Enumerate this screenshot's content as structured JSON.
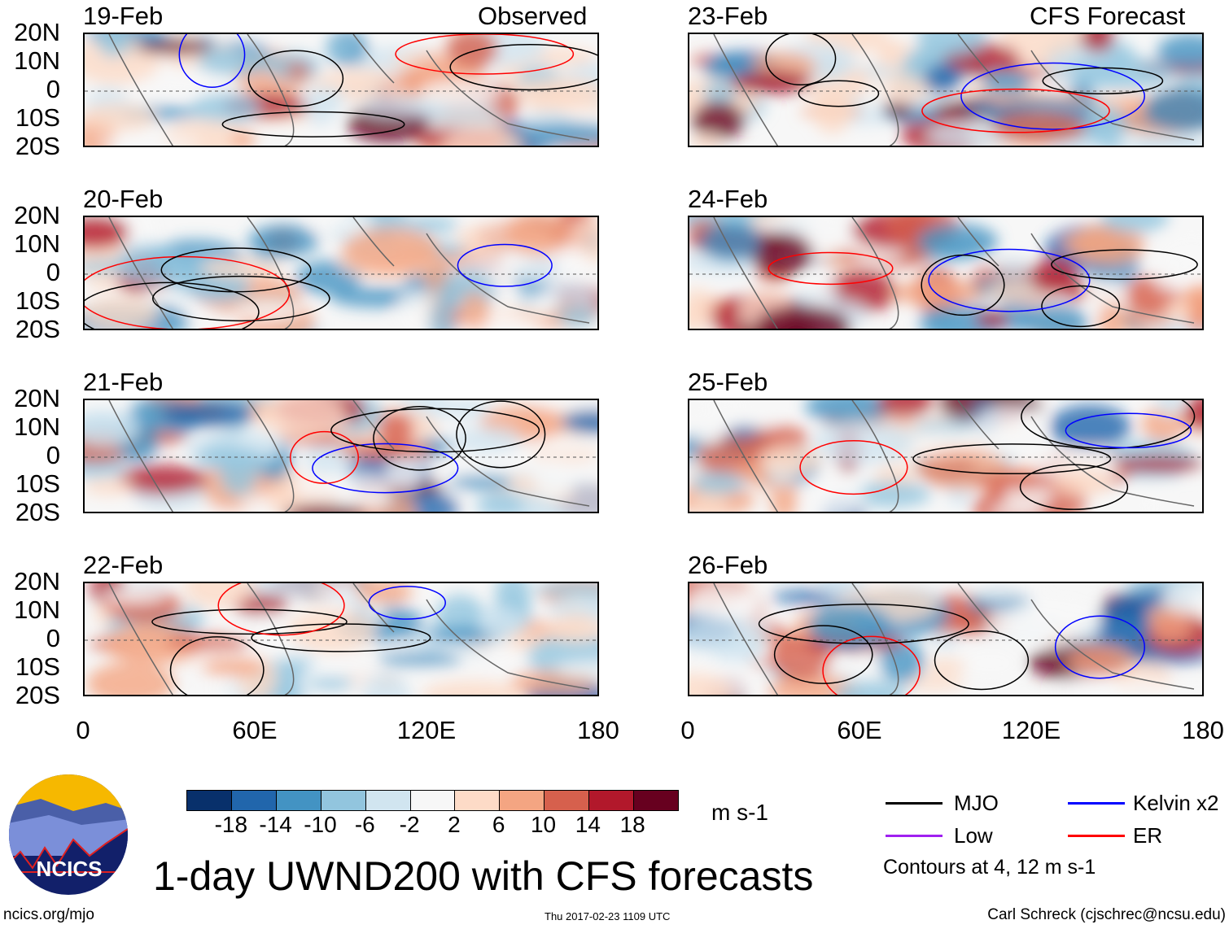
{
  "observed_label": "Observed",
  "forecast_label": "CFS Forecast",
  "panels_left": [
    {
      "date": "19-Feb"
    },
    {
      "date": "20-Feb"
    },
    {
      "date": "21-Feb"
    },
    {
      "date": "22-Feb"
    }
  ],
  "panels_right": [
    {
      "date": "23-Feb"
    },
    {
      "date": "24-Feb"
    },
    {
      "date": "25-Feb"
    },
    {
      "date": "26-Feb"
    }
  ],
  "lat_labels": [
    "20N",
    "10N",
    "0",
    "10S",
    "20S"
  ],
  "lon_labels": [
    "0",
    "60E",
    "120E",
    "180"
  ],
  "colorbar": {
    "colors": [
      "#08306b",
      "#2166ac",
      "#4393c3",
      "#92c5de",
      "#d1e5f0",
      "#f7f7f7",
      "#fddbc7",
      "#f4a582",
      "#d6604d",
      "#b2182b",
      "#67001f"
    ],
    "labels": [
      "-18",
      "-14",
      "-10",
      "-6",
      "-2",
      "2",
      "6",
      "10",
      "14",
      "18"
    ],
    "units": "m s-1"
  },
  "legend": {
    "items": [
      {
        "label": "MJO",
        "color": "#000000"
      },
      {
        "label": "Kelvin x2",
        "color": "#0000ff"
      },
      {
        "label": "Low",
        "color": "#a020f0"
      },
      {
        "label": "ER",
        "color": "#ff0000"
      }
    ],
    "note": "Contours at 4, 12 m s-1"
  },
  "title": "1-day UWND200 with CFS forecasts",
  "logo_text": "NCICS",
  "footer": {
    "left": "ncics.org/mjo",
    "center": "Thu 2017-02-23 1109 UTC",
    "right": "Carl Schreck (cjschrec@ncsu.edu)"
  }
}
